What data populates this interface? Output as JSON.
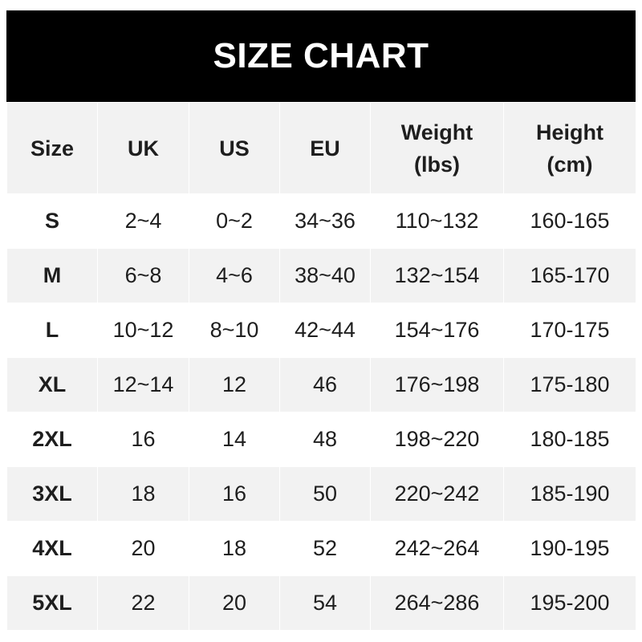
{
  "title": "SIZE CHART",
  "headers": [
    "Size",
    "UK",
    "US",
    "EU",
    "Weight\n(lbs)",
    "Height\n(cm)"
  ],
  "rows": [
    [
      "S",
      "2~4",
      "0~2",
      "34~36",
      "110~132",
      "160-165"
    ],
    [
      "M",
      "6~8",
      "4~6",
      "38~40",
      "132~154",
      "165-170"
    ],
    [
      "L",
      "10~12",
      "8~10",
      "42~44",
      "154~176",
      "170-175"
    ],
    [
      "XL",
      "12~14",
      "12",
      "46",
      "176~198",
      "175-180"
    ],
    [
      "2XL",
      "16",
      "14",
      "48",
      "198~220",
      "180-185"
    ],
    [
      "3XL",
      "18",
      "16",
      "50",
      "220~242",
      "185-190"
    ],
    [
      "4XL",
      "20",
      "18",
      "52",
      "242~264",
      "190-195"
    ],
    [
      "5XL",
      "22",
      "20",
      "54",
      "264~286",
      "195-200"
    ]
  ],
  "colors": {
    "header_bg": "#000000",
    "alt_row_bg": "#f2f2f2",
    "text": "#1e1e1e"
  }
}
